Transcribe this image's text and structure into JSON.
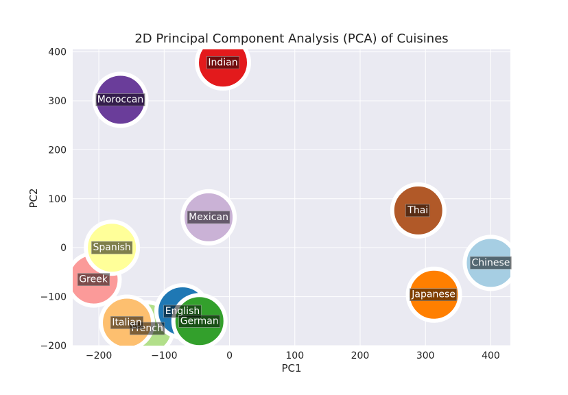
{
  "chart_data": {
    "type": "scatter",
    "title": "2D Principal Component Analysis (PCA) of Cuisines",
    "xlabel": "PC1",
    "ylabel": "PC2",
    "xlim": [
      -240,
      430
    ],
    "ylim": [
      -200,
      405
    ],
    "xticks": [
      -200,
      -100,
      0,
      100,
      200,
      300,
      400
    ],
    "yticks": [
      -200,
      -100,
      0,
      100,
      200,
      300,
      400
    ],
    "xtick_labels": [
      "−200",
      "−100",
      "0",
      "100",
      "200",
      "300",
      "400"
    ],
    "ytick_labels": [
      "−200",
      "−100",
      "0",
      "100",
      "200",
      "300",
      "400"
    ],
    "grid": true,
    "background_color": "#eaeaf2",
    "grid_color": "#ffffff",
    "points": [
      {
        "label": "Greek",
        "x": -208,
        "y": -65,
        "color": "#fb9a99"
      },
      {
        "label": "French",
        "x": -126,
        "y": -165,
        "color": "#b2df8a"
      },
      {
        "label": "Italian",
        "x": -157,
        "y": -153,
        "color": "#fdbf6f"
      },
      {
        "label": "Spanish",
        "x": -180,
        "y": 0,
        "color": "#ffff99"
      },
      {
        "label": "English",
        "x": -72,
        "y": -130,
        "color": "#1f78b4"
      },
      {
        "label": "German",
        "x": -46,
        "y": -150,
        "color": "#33a02c"
      },
      {
        "label": "Mexican",
        "x": -32,
        "y": 62,
        "color": "#cab2d6"
      },
      {
        "label": "Moroccan",
        "x": -167,
        "y": 302,
        "color": "#6a3d9a"
      },
      {
        "label": "Indian",
        "x": -10,
        "y": 378,
        "color": "#e31a1c"
      },
      {
        "label": "Thai",
        "x": 289,
        "y": 76,
        "color": "#b15928"
      },
      {
        "label": "Japanese",
        "x": 313,
        "y": -96,
        "color": "#ff7f00"
      },
      {
        "label": "Chinese",
        "x": 400,
        "y": -31,
        "color": "#a6cee3"
      }
    ]
  }
}
